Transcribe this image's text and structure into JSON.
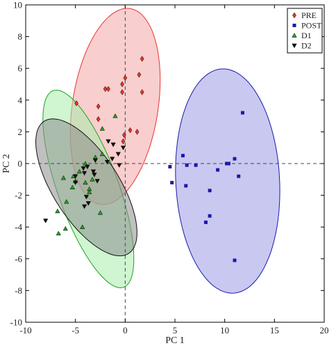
{
  "chart_data": {
    "type": "scatter",
    "xlabel": "PC 1",
    "ylabel": "PC 2",
    "xlim": [
      -10,
      20
    ],
    "ylim": [
      -10,
      10
    ],
    "xticks": [
      -10,
      -5,
      0,
      5,
      10,
      15,
      20
    ],
    "yticks": [
      -10,
      -8,
      -6,
      -4,
      -2,
      0,
      2,
      4,
      6,
      8,
      10
    ],
    "zero_lines": "dashed",
    "legend_position": "top-right",
    "series": [
      {
        "name": "PRE",
        "marker": "diamond",
        "color": "#e8342c",
        "fill": "#f4a6a6",
        "ellipse": {
          "cx": -1.0,
          "cy": 3.6,
          "rx": 4.2,
          "ry": 6.4,
          "angle": -20
        },
        "points": [
          [
            1.7,
            6.6
          ],
          [
            1.4,
            5.6
          ],
          [
            0.0,
            5.4
          ],
          [
            -0.3,
            5.0
          ],
          [
            -1.7,
            4.7
          ],
          [
            -2.0,
            4.7
          ],
          [
            -0.3,
            4.5
          ],
          [
            1.7,
            4.5
          ],
          [
            -4.9,
            3.8
          ],
          [
            -2.7,
            3.6
          ],
          [
            -2.7,
            2.8
          ],
          [
            0.5,
            2.1
          ],
          [
            1.2,
            2.0
          ],
          [
            -0.1,
            1.8
          ],
          [
            -0.2,
            1.4
          ]
        ]
      },
      {
        "name": "POST",
        "marker": "square",
        "color": "#1a1aa8",
        "fill": "#9a9ae6",
        "ellipse": {
          "cx": 10.3,
          "cy": -1.1,
          "rx": 5.2,
          "ry": 7.1,
          "angle": 8
        },
        "points": [
          [
            11.8,
            3.2
          ],
          [
            5.8,
            0.5
          ],
          [
            10.2,
            0.0
          ],
          [
            10.4,
            0.0
          ],
          [
            11.0,
            0.3
          ],
          [
            4.5,
            -0.2
          ],
          [
            6.2,
            -0.1
          ],
          [
            7.1,
            -0.1
          ],
          [
            9.3,
            -0.4
          ],
          [
            11.4,
            -0.8
          ],
          [
            4.7,
            -1.2
          ],
          [
            6.1,
            -1.4
          ],
          [
            8.5,
            -1.7
          ],
          [
            8.5,
            -3.3
          ],
          [
            8.1,
            -3.7
          ],
          [
            11.0,
            -6.1
          ]
        ]
      },
      {
        "name": "D1",
        "marker": "triangle-up",
        "color": "#1ea31e",
        "fill": "#a8ecab",
        "ellipse": {
          "cx": -3.7,
          "cy": -1.6,
          "rx": 2.8,
          "ry": 7.2,
          "angle": 33
        },
        "points": [
          [
            -1.0,
            3.0
          ],
          [
            -2.3,
            2.2
          ],
          [
            -2.3,
            0.6
          ],
          [
            -3.0,
            0.4
          ],
          [
            -4.0,
            0.0
          ],
          [
            -4.6,
            -0.5
          ],
          [
            -5.2,
            -0.8
          ],
          [
            -6.2,
            -0.9
          ],
          [
            -3.3,
            -1.0
          ],
          [
            -5.0,
            -1.1
          ],
          [
            -4.0,
            -1.2
          ],
          [
            -5.3,
            -1.5
          ],
          [
            -3.6,
            -1.6
          ],
          [
            -3.6,
            -1.8
          ],
          [
            -5.9,
            -2.4
          ],
          [
            -6.8,
            -3.0
          ],
          [
            -2.5,
            -3.1
          ],
          [
            -4.3,
            -4.0
          ],
          [
            -6.0,
            -4.1
          ],
          [
            -6.7,
            -4.4
          ]
        ]
      },
      {
        "name": "D2",
        "marker": "triangle-down",
        "color": "#111111",
        "fill": "#8c8c8c",
        "ellipse": {
          "cx": -3.9,
          "cy": -1.5,
          "rx": 2.7,
          "ry": 6.1,
          "angle": 52
        },
        "points": [
          [
            -1.7,
            1.4
          ],
          [
            -1.2,
            1.2
          ],
          [
            -0.2,
            1.0
          ],
          [
            -0.7,
            0.6
          ],
          [
            -1.3,
            0.3
          ],
          [
            -3.0,
            0.2
          ],
          [
            -1.8,
            0.1
          ],
          [
            -0.6,
            -0.1
          ],
          [
            -3.8,
            -0.2
          ],
          [
            -4.2,
            -0.3
          ],
          [
            -3.2,
            -0.5
          ],
          [
            -4.1,
            -0.6
          ],
          [
            -3.1,
            -0.7
          ],
          [
            -5.0,
            -0.8
          ],
          [
            -2.8,
            -1.1
          ],
          [
            -5.0,
            -1.2
          ],
          [
            -3.9,
            -2.1
          ],
          [
            -3.7,
            -2.5
          ],
          [
            -4.1,
            -2.7
          ],
          [
            -8.0,
            -3.6
          ]
        ]
      }
    ]
  }
}
